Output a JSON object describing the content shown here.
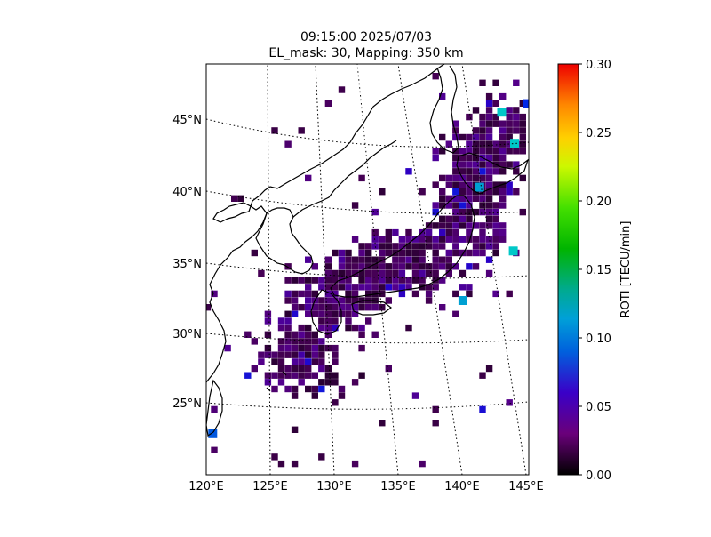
{
  "title_line1": "09:15:00 2025/07/03",
  "title_line2": "EL_mask: 30, Mapping: 350 km",
  "colorbar": {
    "label": "ROTI [TECU/min]",
    "ticks": [
      "0.00",
      "0.05",
      "0.10",
      "0.15",
      "0.20",
      "0.25",
      "0.30"
    ]
  },
  "x_ticks": [
    "120°E",
    "125°E",
    "130°E",
    "135°E",
    "140°E",
    "145°E"
  ],
  "y_ticks": [
    "25°N",
    "30°N",
    "35°N",
    "40°N",
    "45°N"
  ],
  "chart_data": {
    "type": "heatmap",
    "colormap": "nipy_spectral",
    "value_range": [
      0.0,
      0.3
    ],
    "lon_range": [
      120,
      145
    ],
    "lat_range": [
      20,
      49
    ],
    "grid": true,
    "projection": "conic",
    "dominant_value": 0.03,
    "high_value_spots": [
      {
        "lon": 120.5,
        "lat": 22.9,
        "value": 0.07
      },
      {
        "lon": 139.9,
        "lat": 32.3,
        "value": 0.09
      },
      {
        "lon": 143.8,
        "lat": 35.8,
        "value": 0.1
      },
      {
        "lon": 141.2,
        "lat": 40.3,
        "value": 0.09
      },
      {
        "lon": 142.9,
        "lat": 45.6,
        "value": 0.1
      },
      {
        "lon": 143.9,
        "lat": 43.4,
        "value": 0.1
      },
      {
        "lon": 144.9,
        "lat": 46.2,
        "value": 0.06
      }
    ]
  }
}
